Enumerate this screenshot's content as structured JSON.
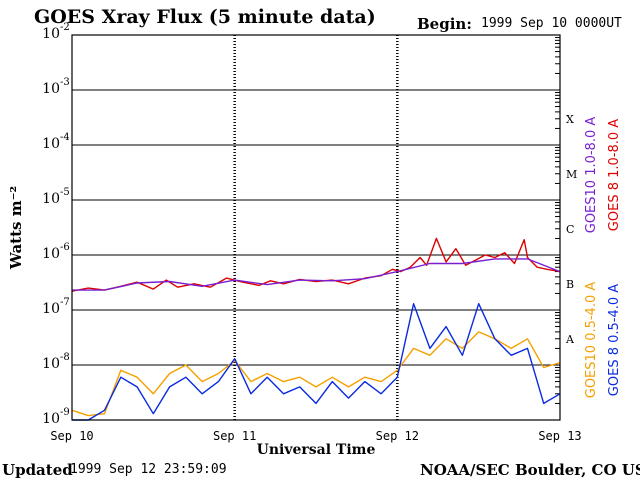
{
  "header": {
    "title": "GOES Xray Flux (5 minute data)",
    "begin_label": "Begin:",
    "begin_value": "1999 Sep 10 0000UT"
  },
  "footer": {
    "updated_label": "Updated",
    "updated_value": "1999 Sep 12 23:59:09",
    "source": "NOAA/SEC Boulder, CO USA"
  },
  "colors": {
    "goes8_long": "#dd0000",
    "goes10_long": "#7a1fd0",
    "goes10_short": "#f5a000",
    "goes8_short": "#0a2be0",
    "axes": "#000000"
  },
  "chart_data": {
    "type": "line",
    "title": "GOES Xray Flux (5 minute data)",
    "xlabel": "Universal Time",
    "ylabel": "Watts m⁻²",
    "y_scale": "log",
    "ylim": [
      1e-09,
      0.01
    ],
    "y_ticks": [
      {
        "value": 1e-09,
        "base": "10",
        "exp": "-9"
      },
      {
        "value": 1e-08,
        "base": "10",
        "exp": "-8"
      },
      {
        "value": 1e-07,
        "base": "10",
        "exp": "-7"
      },
      {
        "value": 1e-06,
        "base": "10",
        "exp": "-6"
      },
      {
        "value": 1e-05,
        "base": "10",
        "exp": "-5"
      },
      {
        "value": 0.0001,
        "base": "10",
        "exp": "-4"
      },
      {
        "value": 0.001,
        "base": "10",
        "exp": "-3"
      },
      {
        "value": 0.01,
        "base": "10",
        "exp": "-2"
      }
    ],
    "x_ticks": [
      "Sep 10",
      "Sep 11",
      "Sep 12",
      "Sep 13"
    ],
    "xlim_days": [
      0,
      3
    ],
    "flare_classes": [
      {
        "label": "A",
        "value": 3e-08
      },
      {
        "label": "B",
        "value": 3e-07
      },
      {
        "label": "C",
        "value": 3e-06
      },
      {
        "label": "M",
        "value": 3e-05
      },
      {
        "label": "X",
        "value": 0.0003
      }
    ],
    "grid": true,
    "legend": "right",
    "series": [
      {
        "name": "GOES 8 1.0-8.0 A",
        "color": "#dd0000",
        "x": [
          0,
          0.1,
          0.2,
          0.3,
          0.4,
          0.5,
          0.58,
          0.65,
          0.75,
          0.85,
          0.95,
          1.05,
          1.15,
          1.22,
          1.3,
          1.4,
          1.5,
          1.6,
          1.7,
          1.8,
          1.9,
          1.97,
          2.02,
          2.08,
          2.14,
          2.18,
          2.24,
          2.3,
          2.36,
          2.42,
          2.48,
          2.54,
          2.6,
          2.66,
          2.72,
          2.78,
          2.8,
          2.86,
          2.92,
          3.0
        ],
        "y": [
          2.2e-07,
          2.5e-07,
          2.3e-07,
          2.7e-07,
          3.2e-07,
          2.4e-07,
          3.5e-07,
          2.6e-07,
          3e-07,
          2.6e-07,
          3.8e-07,
          3.2e-07,
          2.8e-07,
          3.4e-07,
          3e-07,
          3.6e-07,
          3.3e-07,
          3.5e-07,
          3e-07,
          3.8e-07,
          4.2e-07,
          5.5e-07,
          5e-07,
          6e-07,
          9e-07,
          6.5e-07,
          2e-06,
          7.5e-07,
          1.3e-06,
          6.5e-07,
          8e-07,
          1e-06,
          9e-07,
          1.1e-06,
          7e-07,
          1.9e-06,
          9e-07,
          6e-07,
          5.5e-07,
          5e-07
        ]
      },
      {
        "name": "GOES10 1.0-8.0 A",
        "color": "#7a1fd0",
        "x": [
          0,
          0.2,
          0.4,
          0.6,
          0.8,
          1.0,
          1.2,
          1.4,
          1.6,
          1.8,
          2.0,
          2.2,
          2.4,
          2.6,
          2.8,
          3.0
        ],
        "y": [
          2.3e-07,
          2.3e-07,
          3.1e-07,
          3.3e-07,
          2.7e-07,
          3.5e-07,
          2.9e-07,
          3.5e-07,
          3.4e-07,
          3.7e-07,
          5e-07,
          7e-07,
          7e-07,
          8.5e-07,
          8.5e-07,
          5e-07
        ]
      },
      {
        "name": "GOES10 0.5-4.0 A",
        "color": "#f5a000",
        "x": [
          0,
          0.1,
          0.2,
          0.3,
          0.4,
          0.5,
          0.6,
          0.7,
          0.8,
          0.9,
          1.0,
          1.1,
          1.2,
          1.3,
          1.4,
          1.5,
          1.6,
          1.7,
          1.8,
          1.9,
          2.0,
          2.1,
          2.2,
          2.3,
          2.4,
          2.5,
          2.6,
          2.7,
          2.8,
          2.9,
          3.0
        ],
        "y": [
          1.5e-09,
          1.2e-09,
          1.3e-09,
          8e-09,
          6e-09,
          3e-09,
          7e-09,
          1e-08,
          5e-09,
          7e-09,
          1.2e-08,
          5e-09,
          7e-09,
          5e-09,
          6e-09,
          4e-09,
          6e-09,
          4e-09,
          6e-09,
          5e-09,
          8e-09,
          2e-08,
          1.5e-08,
          3e-08,
          2e-08,
          4e-08,
          3e-08,
          2e-08,
          3e-08,
          9e-09,
          1.1e-08
        ]
      },
      {
        "name": "GOES 8 0.5-4.0 A",
        "color": "#0a2be0",
        "x": [
          0,
          0.1,
          0.2,
          0.3,
          0.4,
          0.5,
          0.6,
          0.7,
          0.8,
          0.9,
          1.0,
          1.1,
          1.2,
          1.3,
          1.4,
          1.5,
          1.6,
          1.7,
          1.8,
          1.9,
          2.0,
          2.1,
          2.2,
          2.3,
          2.4,
          2.5,
          2.6,
          2.7,
          2.8,
          2.9,
          3.0
        ],
        "y": [
          1e-09,
          1e-09,
          1.5e-09,
          6e-09,
          4e-09,
          1.3e-09,
          4e-09,
          6e-09,
          3e-09,
          5e-09,
          1.3e-08,
          3e-09,
          6e-09,
          3e-09,
          4e-09,
          2e-09,
          5e-09,
          2.5e-09,
          5e-09,
          3e-09,
          6e-09,
          1.3e-07,
          2e-08,
          5e-08,
          1.5e-08,
          1.3e-07,
          3e-08,
          1.5e-08,
          2e-08,
          2e-09,
          3e-09
        ]
      }
    ]
  }
}
